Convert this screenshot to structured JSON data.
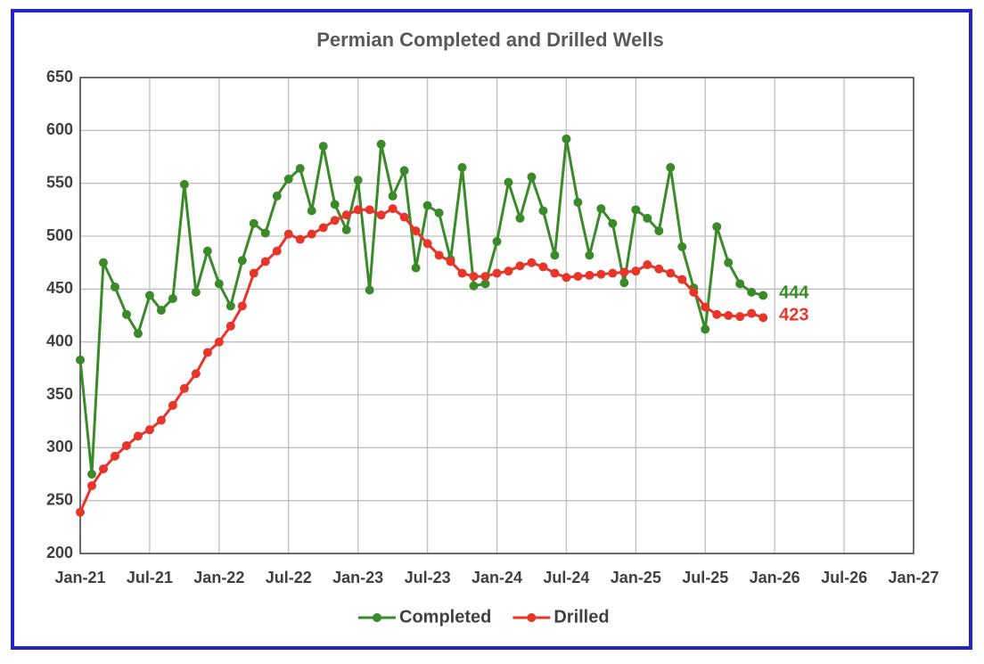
{
  "chart_data": {
    "type": "line",
    "title": "Permian Completed and Drilled Wells",
    "x": [
      "2021-01",
      "2021-02",
      "2021-03",
      "2021-04",
      "2021-05",
      "2021-06",
      "2021-07",
      "2021-08",
      "2021-09",
      "2021-10",
      "2021-11",
      "2021-12",
      "2022-01",
      "2022-02",
      "2022-03",
      "2022-04",
      "2022-05",
      "2022-06",
      "2022-07",
      "2022-08",
      "2022-09",
      "2022-10",
      "2022-11",
      "2022-12",
      "2023-01",
      "2023-02",
      "2023-03",
      "2023-04",
      "2023-05",
      "2023-06",
      "2023-07",
      "2023-08",
      "2023-09",
      "2023-10",
      "2023-11",
      "2023-12",
      "2024-01",
      "2024-02",
      "2024-03",
      "2024-04",
      "2024-05",
      "2024-06",
      "2024-07",
      "2024-08",
      "2024-09",
      "2024-10",
      "2024-11",
      "2024-12",
      "2025-01",
      "2025-02",
      "2025-03",
      "2025-04",
      "2025-05",
      "2025-06",
      "2025-07",
      "2025-08",
      "2025-09",
      "2025-10",
      "2025-11",
      "2025-12"
    ],
    "series": [
      {
        "name": "Completed",
        "color": "#3a8a2a",
        "values": [
          383,
          275,
          475,
          452,
          426,
          408,
          444,
          430,
          441,
          549,
          447,
          486,
          455,
          434,
          477,
          512,
          503,
          538,
          554,
          564,
          524,
          585,
          530,
          506,
          553,
          449,
          587,
          538,
          562,
          470,
          529,
          522,
          478,
          565,
          453,
          455,
          495,
          551,
          517,
          556,
          524,
          482,
          592,
          532,
          482,
          526,
          512,
          456,
          525,
          517,
          505,
          565,
          490,
          451,
          412,
          509,
          475,
          455,
          447,
          444
        ]
      },
      {
        "name": "Drilled",
        "color": "#e8352a",
        "values": [
          239,
          264,
          280,
          292,
          302,
          311,
          317,
          326,
          340,
          356,
          370,
          390,
          400,
          415,
          434,
          465,
          476,
          486,
          502,
          497,
          502,
          508,
          515,
          520,
          525,
          525,
          520,
          526,
          518,
          505,
          493,
          482,
          476,
          465,
          462,
          462,
          465,
          467,
          472,
          475,
          471,
          465,
          461,
          462,
          463,
          464,
          465,
          466,
          467,
          473,
          469,
          465,
          459,
          447,
          433,
          426,
          425,
          424,
          427,
          423
        ]
      }
    ],
    "xlim": [
      "2021-01",
      "2027-01"
    ],
    "xticks": [
      {
        "value": "2021-01",
        "label": "Jan-21"
      },
      {
        "value": "2021-07",
        "label": "Jul-21"
      },
      {
        "value": "2022-01",
        "label": "Jan-22"
      },
      {
        "value": "2022-07",
        "label": "Jul-22"
      },
      {
        "value": "2023-01",
        "label": "Jan-23"
      },
      {
        "value": "2023-07",
        "label": "Jul-23"
      },
      {
        "value": "2024-01",
        "label": "Jan-24"
      },
      {
        "value": "2024-07",
        "label": "Jul-24"
      },
      {
        "value": "2025-01",
        "label": "Jan-25"
      },
      {
        "value": "2025-07",
        "label": "Jul-25"
      },
      {
        "value": "2026-01",
        "label": "Jan-26"
      },
      {
        "value": "2026-07",
        "label": "Jul-26"
      },
      {
        "value": "2027-01",
        "label": "Jan-27"
      }
    ],
    "ylim": [
      200,
      650
    ],
    "yticks": [
      200,
      250,
      300,
      350,
      400,
      450,
      500,
      550,
      600,
      650
    ],
    "grid": true,
    "legend": "bottom"
  }
}
